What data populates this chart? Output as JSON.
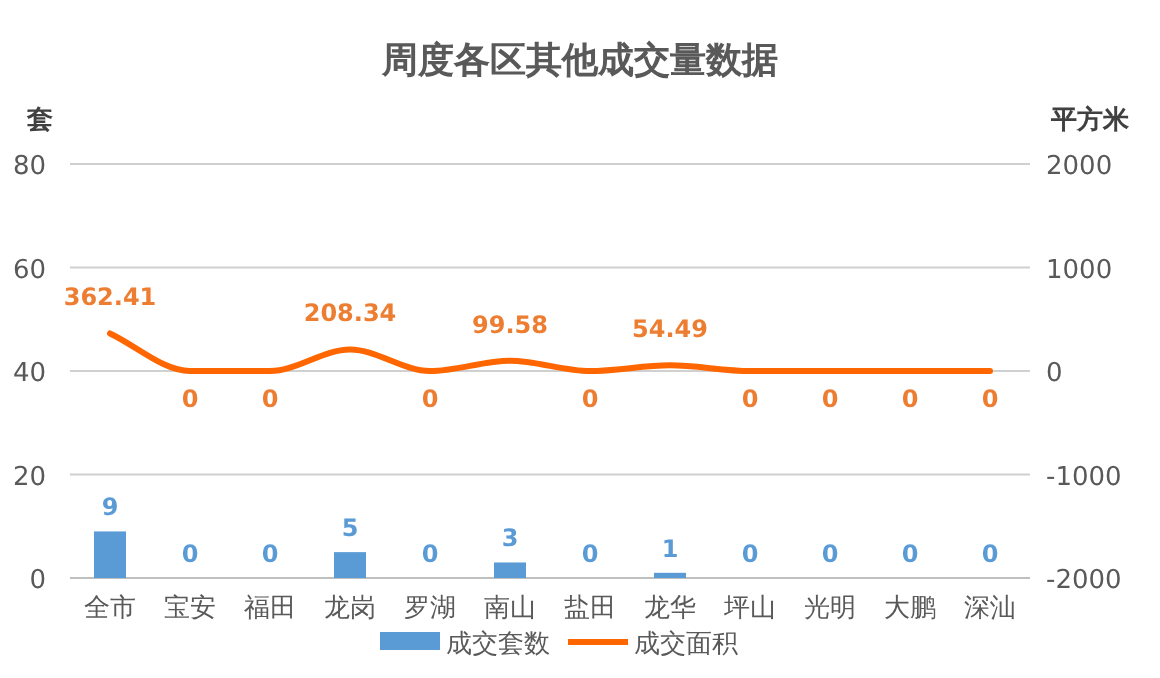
{
  "chart_data": {
    "type": "bar",
    "title": "周度各区其他成交量数据",
    "ylabel": "套",
    "y2label": "平方米",
    "categories": [
      "全市",
      "宝安",
      "福田",
      "龙岗",
      "罗湖",
      "南山",
      "盐田",
      "龙华",
      "坪山",
      "光明",
      "大鹏",
      "深汕"
    ],
    "series": [
      {
        "name": "成交套数",
        "color": "#5b9bd5",
        "values": [
          9,
          0,
          0,
          5,
          0,
          3,
          0,
          1,
          0,
          0,
          0,
          0
        ]
      },
      {
        "name": "成交面积",
        "type": "line",
        "axis": "y2",
        "color": "#ff6600",
        "values": [
          362.41,
          0,
          0,
          208.34,
          0,
          99.58,
          0,
          54.49,
          0,
          0,
          0,
          0
        ]
      }
    ],
    "ylim": [
      0,
      80
    ],
    "yticks": [
      0,
      20,
      40,
      60,
      80
    ],
    "y2lim": [
      -2000,
      2000
    ],
    "y2ticks": [
      -2000,
      -1000,
      0,
      1000,
      2000
    ],
    "grid": "y",
    "legend": "bottom",
    "data_labels": true
  }
}
